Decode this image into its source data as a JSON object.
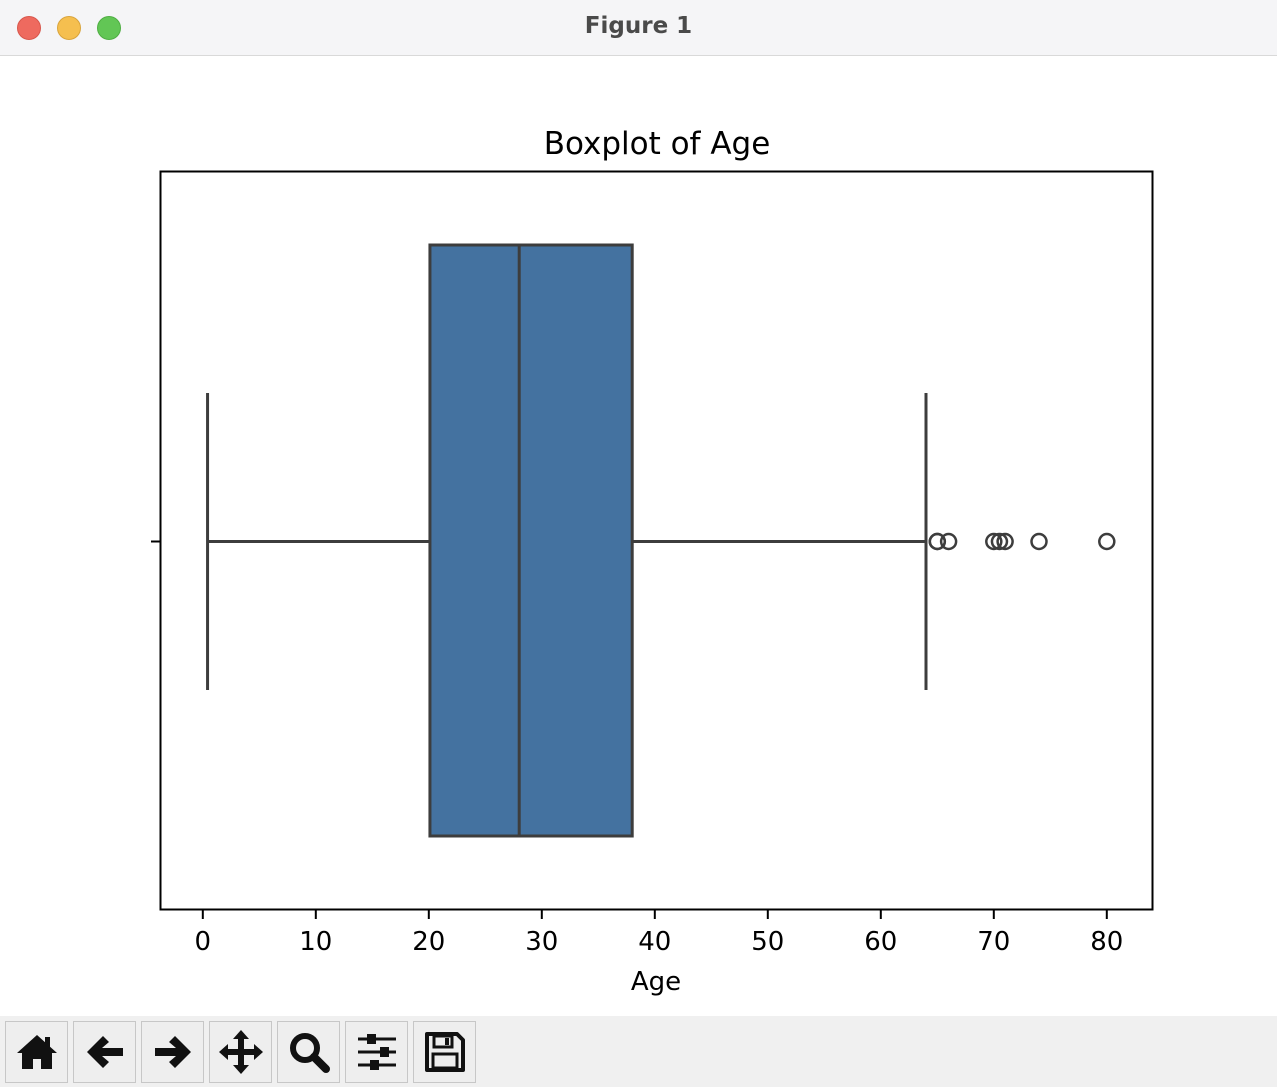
{
  "window": {
    "title": "Figure 1"
  },
  "toolbar": {
    "buttons": [
      {
        "name": "home-button",
        "icon": "home-icon"
      },
      {
        "name": "back-button",
        "icon": "arrow-left-icon"
      },
      {
        "name": "forward-button",
        "icon": "arrow-right-icon"
      },
      {
        "name": "pan-button",
        "icon": "move-icon"
      },
      {
        "name": "zoom-button",
        "icon": "magnifier-icon"
      },
      {
        "name": "configure-subplots-button",
        "icon": "sliders-icon"
      },
      {
        "name": "save-button",
        "icon": "floppy-disk-icon"
      }
    ]
  },
  "chart_data": {
    "type": "boxplot",
    "orientation": "horizontal",
    "title": "Boxplot of Age",
    "xlabel": "Age",
    "ylabel": "",
    "xlim": [
      -3.7,
      84.0
    ],
    "xticks": [
      0,
      10,
      20,
      30,
      40,
      50,
      60,
      70,
      80
    ],
    "xtick_labels": [
      "0",
      "10",
      "20",
      "30",
      "40",
      "50",
      "60",
      "70",
      "80"
    ],
    "grid": false,
    "legend": "none",
    "box": {
      "whisker_low": 0.42,
      "q1": 20.1,
      "median": 28.0,
      "q3": 38.0,
      "whisker_high": 64.0
    },
    "outliers": [
      65.0,
      65.0,
      66.0,
      70.0,
      70.5,
      71.0,
      74.0,
      80.0
    ],
    "colors": {
      "box_fill": "#4472a0",
      "line": "#3d3d3d",
      "frame": "#000000"
    }
  }
}
